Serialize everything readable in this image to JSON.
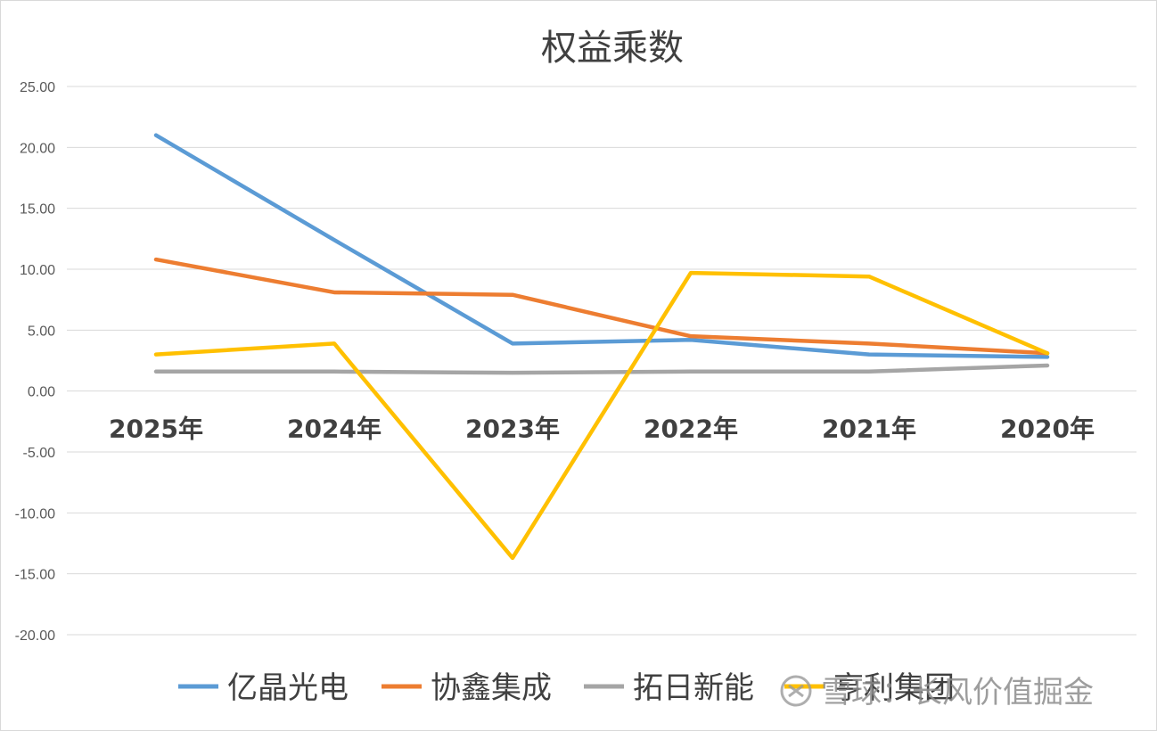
{
  "chart_data": {
    "type": "line",
    "title": "权益乘数",
    "categories": [
      "2025年",
      "2024年",
      "2023年",
      "2022年",
      "2021年",
      "2020年"
    ],
    "ylim": [
      -20,
      25
    ],
    "yticks": [
      "25.00",
      "20.00",
      "15.00",
      "10.00",
      "5.00",
      "0.00",
      "-5.00",
      "-10.00",
      "-15.00",
      "-20.00"
    ],
    "grid": true,
    "legend_position": "bottom",
    "series": [
      {
        "name": "亿晶光电",
        "color": "#5b9bd5",
        "values": [
          21.0,
          12.4,
          3.9,
          4.2,
          3.0,
          2.8
        ]
      },
      {
        "name": "协鑫集成",
        "color": "#ed7d31",
        "values": [
          10.8,
          8.1,
          7.9,
          4.5,
          3.9,
          3.1
        ]
      },
      {
        "name": "拓日新能",
        "color": "#a5a5a5",
        "values": [
          1.6,
          1.6,
          1.5,
          1.6,
          1.6,
          2.1
        ]
      },
      {
        "name": "亨利集团",
        "color": "#ffc000",
        "values": [
          3.0,
          3.9,
          -13.7,
          9.7,
          9.4,
          3.1
        ]
      }
    ]
  },
  "watermark": {
    "icon": "snowball-logo-icon",
    "text": "雪球：长风价值掘金"
  }
}
